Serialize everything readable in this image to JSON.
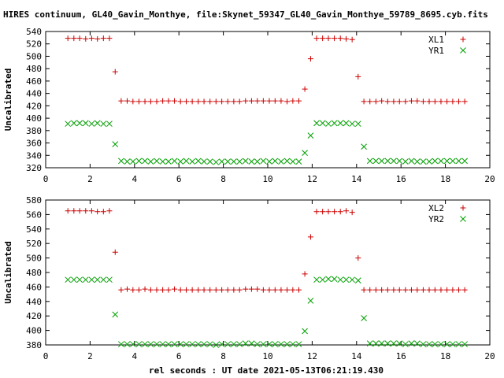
{
  "title": "HIRES continuum, GL40_Gavin_Monthye, file:Skynet_59347_GL40_Gavin_Monthye_59789_8695.cyb.fits",
  "xlabel": "rel seconds : UT date 2021-05-13T06:21:19.430",
  "colors": {
    "series1": "#cc0000",
    "series2": "#00a000",
    "axis": "#000000",
    "grid": "#000000"
  },
  "chart_data": [
    {
      "type": "scatter",
      "ylabel": "Uncalibrated",
      "xlim": [
        0,
        20
      ],
      "ylim": [
        320,
        540
      ],
      "xticks": [
        0,
        2,
        4,
        6,
        8,
        10,
        12,
        14,
        16,
        18,
        20
      ],
      "yticks": [
        320,
        340,
        360,
        380,
        400,
        420,
        440,
        460,
        480,
        500,
        520,
        540
      ],
      "grid": false,
      "legend": "top-right",
      "x": [
        1.0,
        1.27,
        1.53,
        1.8,
        2.07,
        2.33,
        2.6,
        2.87,
        3.13,
        3.4,
        3.67,
        3.93,
        4.2,
        4.47,
        4.73,
        5.0,
        5.27,
        5.53,
        5.8,
        6.07,
        6.33,
        6.6,
        6.87,
        7.13,
        7.4,
        7.67,
        7.93,
        8.2,
        8.47,
        8.73,
        9.0,
        9.27,
        9.53,
        9.8,
        10.07,
        10.33,
        10.6,
        10.87,
        11.13,
        11.4,
        11.67,
        11.93,
        12.2,
        12.47,
        12.73,
        13.0,
        13.27,
        13.53,
        13.8,
        14.07,
        14.33,
        14.6,
        14.87,
        15.13,
        15.4,
        15.67,
        15.93,
        16.2,
        16.47,
        16.73,
        17.0,
        17.27,
        17.53,
        17.8,
        18.07,
        18.33,
        18.6,
        18.87
      ],
      "series": [
        {
          "name": "XL1",
          "marker": "+",
          "values": [
            529,
            529,
            529,
            528,
            529,
            528,
            529,
            529,
            475,
            428,
            428,
            427,
            427,
            427,
            427,
            427,
            428,
            428,
            428,
            427,
            427,
            427,
            427,
            427,
            427,
            427,
            427,
            427,
            427,
            427,
            428,
            428,
            428,
            428,
            428,
            428,
            428,
            427,
            428,
            428,
            447,
            496,
            529,
            529,
            529,
            529,
            529,
            528,
            527,
            467,
            427,
            427,
            427,
            428,
            427,
            427,
            427,
            427,
            428,
            428,
            427,
            427,
            427,
            427,
            427,
            427,
            427,
            427
          ]
        },
        {
          "name": "YR1",
          "marker": "x",
          "values": [
            391,
            392,
            392,
            392,
            391,
            392,
            391,
            391,
            358,
            331,
            330,
            330,
            331,
            331,
            330,
            331,
            330,
            330,
            331,
            330,
            331,
            330,
            331,
            330,
            330,
            329,
            330,
            330,
            330,
            330,
            331,
            330,
            330,
            331,
            330,
            331,
            330,
            331,
            330,
            330,
            344,
            372,
            392,
            392,
            391,
            392,
            392,
            392,
            391,
            391,
            354,
            331,
            331,
            331,
            331,
            331,
            331,
            330,
            331,
            330,
            330,
            330,
            331,
            331,
            331,
            331,
            331,
            331
          ]
        }
      ]
    },
    {
      "type": "scatter",
      "ylabel": "Uncalibrated",
      "xlim": [
        0,
        20
      ],
      "ylim": [
        380,
        580
      ],
      "xticks": [
        0,
        2,
        4,
        6,
        8,
        10,
        12,
        14,
        16,
        18,
        20
      ],
      "yticks": [
        380,
        400,
        420,
        440,
        460,
        480,
        500,
        520,
        540,
        560,
        580
      ],
      "grid": false,
      "legend": "top-right",
      "x": [
        1.0,
        1.27,
        1.53,
        1.8,
        2.07,
        2.33,
        2.6,
        2.87,
        3.13,
        3.4,
        3.67,
        3.93,
        4.2,
        4.47,
        4.73,
        5.0,
        5.27,
        5.53,
        5.8,
        6.07,
        6.33,
        6.6,
        6.87,
        7.13,
        7.4,
        7.67,
        7.93,
        8.2,
        8.47,
        8.73,
        9.0,
        9.27,
        9.53,
        9.8,
        10.07,
        10.33,
        10.6,
        10.87,
        11.13,
        11.4,
        11.67,
        11.93,
        12.2,
        12.47,
        12.73,
        13.0,
        13.27,
        13.53,
        13.8,
        14.07,
        14.33,
        14.6,
        14.87,
        15.13,
        15.4,
        15.67,
        15.93,
        16.2,
        16.47,
        16.73,
        17.0,
        17.27,
        17.53,
        17.8,
        18.07,
        18.33,
        18.6,
        18.87
      ],
      "series": [
        {
          "name": "XL2",
          "marker": "+",
          "values": [
            565,
            565,
            565,
            565,
            565,
            564,
            564,
            565,
            508,
            456,
            457,
            456,
            456,
            457,
            456,
            456,
            456,
            456,
            457,
            456,
            456,
            456,
            456,
            456,
            456,
            456,
            456,
            456,
            456,
            456,
            457,
            457,
            457,
            456,
            456,
            456,
            456,
            456,
            456,
            456,
            478,
            529,
            564,
            564,
            564,
            564,
            564,
            565,
            563,
            500,
            456,
            456,
            456,
            456,
            456,
            456,
            456,
            456,
            456,
            456,
            456,
            456,
            456,
            456,
            456,
            456,
            456,
            456
          ]
        },
        {
          "name": "YR2",
          "marker": "x",
          "values": [
            470,
            470,
            470,
            470,
            470,
            470,
            470,
            470,
            422,
            381,
            381,
            381,
            381,
            381,
            381,
            381,
            381,
            381,
            381,
            381,
            381,
            381,
            381,
            381,
            381,
            380,
            381,
            381,
            381,
            381,
            382,
            382,
            381,
            381,
            381,
            381,
            381,
            381,
            381,
            381,
            399,
            441,
            470,
            470,
            471,
            471,
            470,
            470,
            470,
            469,
            417,
            382,
            382,
            382,
            382,
            382,
            382,
            381,
            382,
            382,
            381,
            381,
            381,
            381,
            381,
            381,
            381,
            381
          ]
        }
      ]
    }
  ]
}
